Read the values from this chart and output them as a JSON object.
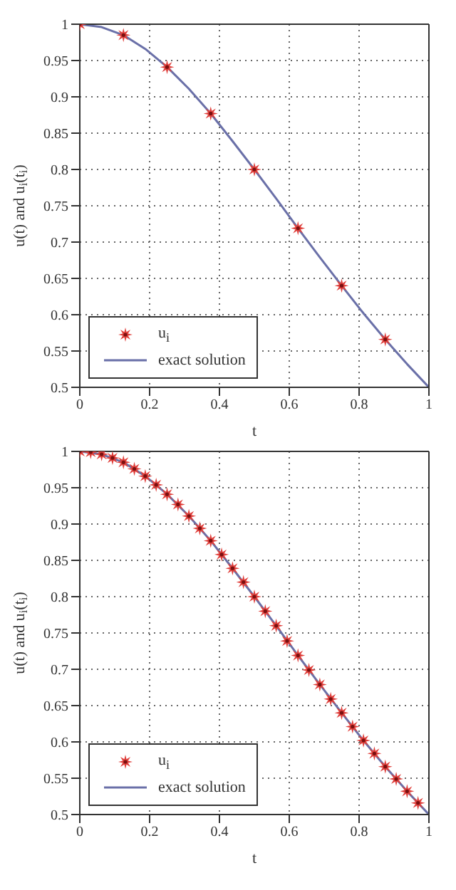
{
  "chart_data": [
    {
      "type": "line",
      "xlabel": "t",
      "ylabel": "u(t) and u$_{i}$(t$_{i}$)",
      "xlim": [
        0,
        1
      ],
      "ylim": [
        0.5,
        1
      ],
      "xticks": [
        0,
        0.2,
        0.4,
        0.6,
        0.8,
        1
      ],
      "yticks": [
        0.5,
        0.55,
        0.6,
        0.65,
        0.7,
        0.75,
        0.8,
        0.85,
        0.9,
        0.95,
        1
      ],
      "grid": true,
      "legend": "bottom left",
      "series": [
        {
          "name": "u$_{i}$",
          "type": "scatter",
          "marker": "star",
          "color": "#e0403c",
          "x": [
            0,
            0.125,
            0.25,
            0.375,
            0.5,
            0.625,
            0.75,
            0.875
          ],
          "values": [
            1,
            0.985,
            0.941,
            0.877,
            0.8,
            0.719,
            0.64,
            0.566
          ]
        },
        {
          "name": "exact solution",
          "marker": "none",
          "line_style": "solid",
          "color": "#6a70a8",
          "x": [
            0,
            0.0625,
            0.125,
            0.1875,
            0.25,
            0.3125,
            0.375,
            0.4375,
            0.5,
            0.5625,
            0.625,
            0.6875,
            0.75,
            0.8125,
            0.875,
            0.9375,
            1
          ],
          "values": [
            1,
            0.996,
            0.985,
            0.966,
            0.941,
            0.911,
            0.877,
            0.839,
            0.8,
            0.76,
            0.719,
            0.679,
            0.64,
            0.602,
            0.566,
            0.532,
            0.5
          ]
        }
      ]
    },
    {
      "type": "line",
      "xlabel": "t",
      "ylabel": "u(t) and u$_{i}$(t$_{i}$)",
      "xlim": [
        0,
        1
      ],
      "ylim": [
        0.5,
        1
      ],
      "xticks": [
        0,
        0.2,
        0.4,
        0.6,
        0.8,
        1
      ],
      "yticks": [
        0.5,
        0.55,
        0.6,
        0.65,
        0.7,
        0.75,
        0.8,
        0.85,
        0.9,
        0.95,
        1
      ],
      "grid": true,
      "legend": "bottom left",
      "series": [
        {
          "name": "u$_{i}$",
          "type": "scatter",
          "marker": "star",
          "color": "#e0403c",
          "x": [
            0,
            0.03125,
            0.0625,
            0.09375,
            0.125,
            0.15625,
            0.1875,
            0.21875,
            0.25,
            0.28125,
            0.3125,
            0.34375,
            0.375,
            0.40625,
            0.4375,
            0.46875,
            0.5,
            0.53125,
            0.5625,
            0.59375,
            0.625,
            0.65625,
            0.6875,
            0.71875,
            0.75,
            0.78125,
            0.8125,
            0.84375,
            0.875,
            0.90625,
            0.9375,
            0.96875
          ],
          "values": [
            1,
            0.999,
            0.996,
            0.991,
            0.985,
            0.976,
            0.966,
            0.954,
            0.941,
            0.927,
            0.911,
            0.894,
            0.877,
            0.858,
            0.839,
            0.82,
            0.8,
            0.78,
            0.76,
            0.739,
            0.719,
            0.699,
            0.679,
            0.659,
            0.64,
            0.621,
            0.602,
            0.584,
            0.566,
            0.549,
            0.532,
            0.516
          ]
        },
        {
          "name": "exact solution",
          "marker": "none",
          "line_style": "solid",
          "color": "#6a70a8",
          "x": [
            0,
            0.0625,
            0.125,
            0.1875,
            0.25,
            0.3125,
            0.375,
            0.4375,
            0.5,
            0.5625,
            0.625,
            0.6875,
            0.75,
            0.8125,
            0.875,
            0.9375,
            1
          ],
          "values": [
            1,
            0.996,
            0.985,
            0.966,
            0.941,
            0.911,
            0.877,
            0.839,
            0.8,
            0.76,
            0.719,
            0.679,
            0.64,
            0.602,
            0.566,
            0.532,
            0.5
          ]
        }
      ]
    }
  ]
}
